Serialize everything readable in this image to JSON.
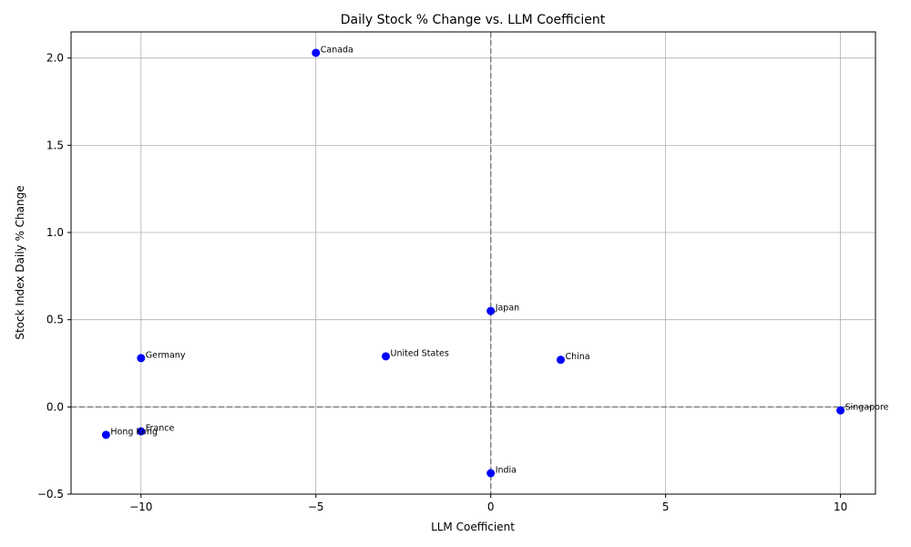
{
  "chart_data": {
    "type": "scatter",
    "title": "Daily Stock % Change vs. LLM Coefficient",
    "xlabel": "LLM Coefficient",
    "ylabel": "Stock Index Daily % Change",
    "xlim": [
      -12,
      11
    ],
    "ylim": [
      -0.5,
      2.15
    ],
    "xticks": [
      -10,
      -5,
      0,
      5,
      10
    ],
    "xtick_labels": [
      "−10",
      "−5",
      "0",
      "5",
      "10"
    ],
    "yticks": [
      -0.5,
      0.0,
      0.5,
      1.0,
      1.5,
      2.0
    ],
    "ytick_labels": [
      "−0.5",
      "0.0",
      "0.5",
      "1.0",
      "1.5",
      "2.0"
    ],
    "grid": true,
    "reference_lines": {
      "x": 0,
      "y": 0,
      "style": "dashed",
      "color": "#808080"
    },
    "marker_color": "#0000ff",
    "points": [
      {
        "label": "Canada",
        "x": -5,
        "y": 2.03
      },
      {
        "label": "Japan",
        "x": 0,
        "y": 0.55
      },
      {
        "label": "United States",
        "x": -3,
        "y": 0.29
      },
      {
        "label": "Germany",
        "x": -10,
        "y": 0.28
      },
      {
        "label": "China",
        "x": 2,
        "y": 0.27
      },
      {
        "label": "Singapore",
        "x": 10,
        "y": -0.02
      },
      {
        "label": "France",
        "x": -10,
        "y": -0.14
      },
      {
        "label": "Hong Kong",
        "x": -11,
        "y": -0.16
      },
      {
        "label": "India",
        "x": 0,
        "y": -0.38
      }
    ]
  }
}
